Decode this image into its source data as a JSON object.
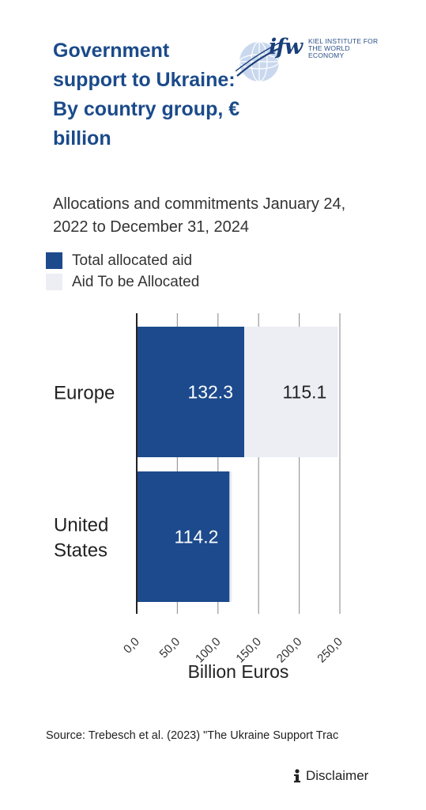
{
  "header": {
    "title": "Government support to Ukraine: By country group, € billion",
    "subtitle": "Allocations and commitments January 24, 2022 to December 31, 2024"
  },
  "logo": {
    "mark": "ifw",
    "line1": "KIEL INSTITUTE FOR",
    "line2": "THE WORLD ECONOMY"
  },
  "legend": [
    {
      "label": "Total allocated aid",
      "color": "#1c4a8c"
    },
    {
      "label": "Aid To be Allocated",
      "color": "#eceef4"
    }
  ],
  "chart_data": {
    "type": "bar",
    "orientation": "horizontal",
    "stacked": true,
    "categories": [
      "Europe",
      "United States"
    ],
    "series": [
      {
        "name": "Total allocated aid",
        "values": [
          132.3,
          114.2
        ],
        "color": "#1c4a8c",
        "label_color": "#ffffff"
      },
      {
        "name": "Aid To be Allocated",
        "values": [
          115.1,
          3.0
        ],
        "color": "#eceef4",
        "label_color": "#222222",
        "labels": [
          "115.1",
          ""
        ]
      }
    ],
    "value_labels": [
      [
        "132.3",
        "114.2"
      ],
      [
        "115.1",
        ""
      ]
    ],
    "xlabel": "Billion Euros",
    "xlim": [
      0,
      250
    ],
    "xticks": [
      "0,0",
      "50,0",
      "100,0",
      "150,0",
      "200,0",
      "250,0"
    ],
    "grid": true
  },
  "footer": {
    "source": "Source: Trebesch et al. (2023) \"The Ukraine Support Trac",
    "disclaimer": "Disclaimer"
  }
}
